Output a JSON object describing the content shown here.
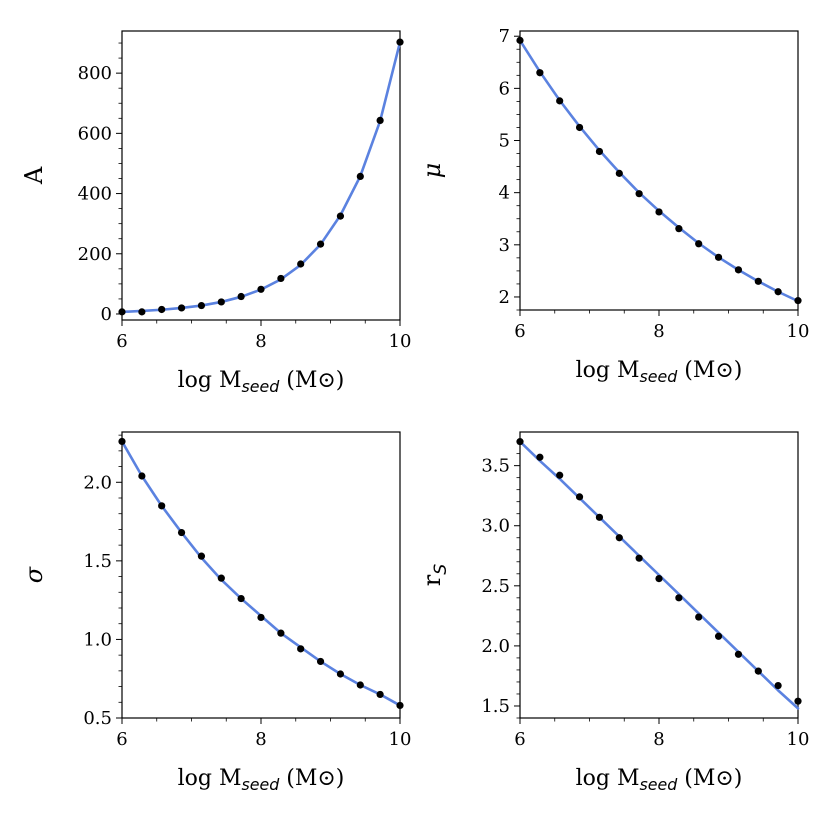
{
  "chart_data": [
    {
      "type": "scatter",
      "ylabel": "A",
      "xlabel": "log M_seed (M⊙)",
      "xlim": [
        6,
        10
      ],
      "ylim": [
        -20,
        940
      ],
      "xticks": [
        6,
        8,
        10
      ],
      "yticks": [
        0,
        200,
        400,
        600,
        800
      ],
      "ytick_labels": [
        "0",
        "200",
        "400",
        "600",
        "800"
      ],
      "yminor_step": 50,
      "x": [
        6.0,
        6.286,
        6.571,
        6.857,
        7.143,
        7.429,
        7.714,
        8.0,
        8.286,
        8.571,
        8.857,
        9.143,
        9.429,
        9.714,
        10.0
      ],
      "points": [
        7,
        7,
        15,
        20,
        28,
        40,
        58,
        82,
        118,
        166,
        232,
        325,
        457,
        643,
        903
      ],
      "fit": [
        7,
        10,
        14,
        20,
        28,
        40,
        57,
        81,
        115,
        163,
        231,
        328,
        458,
        641,
        903
      ]
    },
    {
      "type": "scatter",
      "ylabel": "μ",
      "xlabel": "log M_seed (M⊙)",
      "xlim": [
        6,
        10
      ],
      "ylim": [
        1.75,
        7.1
      ],
      "xticks": [
        6,
        8,
        10
      ],
      "yticks": [
        2,
        3,
        4,
        5,
        6,
        7
      ],
      "ytick_labels": [
        "2",
        "3",
        "4",
        "5",
        "6",
        "7"
      ],
      "yminor_step": 0.25,
      "x": [
        6.0,
        6.286,
        6.571,
        6.857,
        7.143,
        7.429,
        7.714,
        8.0,
        8.286,
        8.571,
        8.857,
        9.143,
        9.429,
        9.714,
        10.0
      ],
      "points": [
        6.92,
        6.3,
        5.76,
        5.25,
        4.79,
        4.37,
        3.98,
        3.63,
        3.31,
        3.02,
        2.76,
        2.52,
        2.3,
        2.1,
        1.93
      ],
      "fit": [
        6.92,
        6.32,
        5.77,
        5.27,
        4.81,
        4.39,
        4.0,
        3.65,
        3.33,
        3.03,
        2.76,
        2.52,
        2.3,
        2.1,
        1.92
      ]
    },
    {
      "type": "scatter",
      "ylabel": "σ",
      "xlabel": "log M_seed (M⊙)",
      "xlim": [
        6,
        10
      ],
      "ylim": [
        0.5,
        2.32
      ],
      "xticks": [
        6,
        8,
        10
      ],
      "yticks": [
        0.5,
        1.0,
        1.5,
        2.0
      ],
      "ytick_labels": [
        "0.5",
        "1.0",
        "1.5",
        "2.0"
      ],
      "yminor_step": 0.1,
      "x": [
        6.0,
        6.286,
        6.571,
        6.857,
        7.143,
        7.429,
        7.714,
        8.0,
        8.286,
        8.571,
        8.857,
        9.143,
        9.429,
        9.714,
        10.0
      ],
      "points": [
        2.26,
        2.04,
        1.85,
        1.68,
        1.53,
        1.39,
        1.26,
        1.14,
        1.04,
        0.94,
        0.86,
        0.78,
        0.71,
        0.65,
        0.58
      ],
      "fit": [
        2.26,
        2.04,
        1.85,
        1.68,
        1.52,
        1.38,
        1.26,
        1.15,
        1.04,
        0.95,
        0.86,
        0.78,
        0.71,
        0.65,
        0.58
      ]
    },
    {
      "type": "scatter",
      "ylabel": "r_S",
      "xlabel": "log M_seed (M⊙)",
      "xlim": [
        6,
        10
      ],
      "ylim": [
        1.4,
        3.78
      ],
      "xticks": [
        6,
        8,
        10
      ],
      "yticks": [
        1.5,
        2.0,
        2.5,
        3.0,
        3.5
      ],
      "ytick_labels": [
        "1.5",
        "2.0",
        "2.5",
        "3.0",
        "3.5"
      ],
      "yminor_step": 0.1,
      "x": [
        6.0,
        6.286,
        6.571,
        6.857,
        7.143,
        7.429,
        7.714,
        8.0,
        8.286,
        8.571,
        8.857,
        9.143,
        9.429,
        9.714,
        10.0
      ],
      "points": [
        3.7,
        3.57,
        3.42,
        3.24,
        3.07,
        2.9,
        2.73,
        2.56,
        2.4,
        2.24,
        2.08,
        1.93,
        1.79,
        1.67,
        1.54
      ],
      "fit": [
        3.7,
        3.54,
        3.39,
        3.23,
        3.07,
        2.91,
        2.75,
        2.59,
        2.43,
        2.27,
        2.11,
        1.95,
        1.79,
        1.63,
        1.48
      ]
    }
  ]
}
